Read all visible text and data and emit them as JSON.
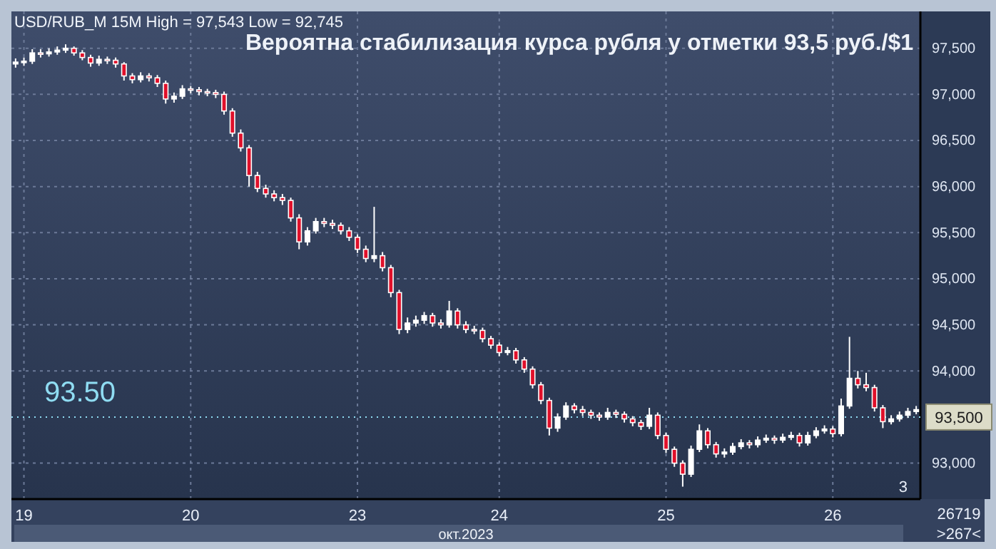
{
  "chart_data": {
    "type": "candlestick",
    "title": "Вероятна стабилизация курса рубля у отметки 93,5 руб./$1",
    "subtitle": "USD/RUB_M 15M High = 97,543 Low = 92,745",
    "xlabel": "окт.2023",
    "categories": [
      null,
      "19",
      null,
      null,
      null,
      null,
      null,
      null,
      null,
      null,
      null,
      null,
      null,
      null,
      null,
      null,
      null,
      null,
      null,
      null,
      null,
      "20",
      null,
      null,
      null,
      null,
      null,
      null,
      null,
      null,
      null,
      null,
      null,
      null,
      null,
      null,
      null,
      null,
      null,
      null,
      null,
      "23",
      null,
      null,
      null,
      null,
      null,
      null,
      null,
      null,
      null,
      null,
      null,
      null,
      null,
      null,
      null,
      null,
      "24",
      null,
      null,
      null,
      null,
      null,
      null,
      null,
      null,
      null,
      null,
      null,
      null,
      null,
      null,
      null,
      null,
      null,
      null,
      null,
      "25",
      null,
      null,
      null,
      null,
      null,
      null,
      null,
      null,
      null,
      null,
      null,
      null,
      null,
      null,
      null,
      null,
      null,
      null,
      null,
      "26",
      null,
      null,
      null,
      null,
      null,
      null,
      null,
      null,
      null,
      null
    ],
    "ohlc": [
      [
        97330,
        97390,
        97290,
        97350
      ],
      [
        97350,
        97400,
        97310,
        97360
      ],
      [
        97360,
        97490,
        97330,
        97450
      ],
      [
        97450,
        97490,
        97400,
        97440
      ],
      [
        97440,
        97500,
        97410,
        97460
      ],
      [
        97460,
        97520,
        97430,
        97480
      ],
      [
        97480,
        97543,
        97450,
        97500
      ],
      [
        97500,
        97520,
        97420,
        97450
      ],
      [
        97450,
        97480,
        97370,
        97400
      ],
      [
        97400,
        97430,
        97300,
        97340
      ],
      [
        97340,
        97420,
        97310,
        97380
      ],
      [
        97380,
        97410,
        97330,
        97370
      ],
      [
        97370,
        97400,
        97290,
        97330
      ],
      [
        97330,
        97350,
        97150,
        97200
      ],
      [
        97200,
        97230,
        97120,
        97160
      ],
      [
        97160,
        97240,
        97130,
        97200
      ],
      [
        97200,
        97230,
        97140,
        97180
      ],
      [
        97180,
        97210,
        97080,
        97120
      ],
      [
        97120,
        97150,
        96900,
        96950
      ],
      [
        96950,
        97020,
        96910,
        96980
      ],
      [
        96980,
        97100,
        96950,
        97060
      ],
      [
        97060,
        97090,
        97010,
        97050
      ],
      [
        97050,
        97080,
        96990,
        97030
      ],
      [
        97030,
        97060,
        96980,
        97020
      ],
      [
        97020,
        97050,
        96960,
        97000
      ],
      [
        97000,
        97030,
        96780,
        96820
      ],
      [
        96820,
        96850,
        96540,
        96580
      ],
      [
        96580,
        96620,
        96380,
        96420
      ],
      [
        96420,
        96450,
        96000,
        96120
      ],
      [
        96120,
        96160,
        95940,
        95980
      ],
      [
        95980,
        96020,
        95880,
        95920
      ],
      [
        95920,
        95960,
        95840,
        95880
      ],
      [
        95880,
        95920,
        95800,
        95850
      ],
      [
        95850,
        95880,
        95620,
        95660
      ],
      [
        95660,
        95700,
        95320,
        95400
      ],
      [
        95400,
        95560,
        95360,
        95520
      ],
      [
        95520,
        95660,
        95490,
        95620
      ],
      [
        95620,
        95660,
        95560,
        95600
      ],
      [
        95600,
        95640,
        95540,
        95580
      ],
      [
        95580,
        95610,
        95480,
        95520
      ],
      [
        95520,
        95560,
        95410,
        95450
      ],
      [
        95450,
        95480,
        95280,
        95320
      ],
      [
        95320,
        95360,
        95180,
        95220
      ],
      [
        95220,
        95780,
        95180,
        95250
      ],
      [
        95250,
        95290,
        95080,
        95120
      ],
      [
        95120,
        95150,
        94800,
        94850
      ],
      [
        94850,
        94880,
        94400,
        94450
      ],
      [
        94450,
        94580,
        94410,
        94520
      ],
      [
        94520,
        94600,
        94480,
        94550
      ],
      [
        94550,
        94640,
        94510,
        94600
      ],
      [
        94600,
        94630,
        94480,
        94520
      ],
      [
        94520,
        94560,
        94460,
        94500
      ],
      [
        94500,
        94760,
        94470,
        94650
      ],
      [
        94650,
        94680,
        94460,
        94500
      ],
      [
        94500,
        94540,
        94410,
        94450
      ],
      [
        94450,
        94490,
        94400,
        94440
      ],
      [
        94440,
        94470,
        94310,
        94350
      ],
      [
        94350,
        94380,
        94240,
        94280
      ],
      [
        94280,
        94310,
        94160,
        94200
      ],
      [
        94200,
        94260,
        94170,
        94220
      ],
      [
        94220,
        94250,
        94080,
        94120
      ],
      [
        94120,
        94150,
        93980,
        94020
      ],
      [
        94020,
        94050,
        93810,
        93850
      ],
      [
        93850,
        93880,
        93640,
        93680
      ],
      [
        93680,
        93710,
        93300,
        93380
      ],
      [
        93380,
        93540,
        93340,
        93500
      ],
      [
        93500,
        93660,
        93470,
        93620
      ],
      [
        93620,
        93650,
        93540,
        93580
      ],
      [
        93580,
        93620,
        93510,
        93550
      ],
      [
        93550,
        93580,
        93480,
        93520
      ],
      [
        93520,
        93550,
        93460,
        93500
      ],
      [
        93500,
        93600,
        93470,
        93550
      ],
      [
        93550,
        93580,
        93490,
        93530
      ],
      [
        93530,
        93560,
        93440,
        93480
      ],
      [
        93480,
        93510,
        93400,
        93440
      ],
      [
        93440,
        93470,
        93360,
        93400
      ],
      [
        93400,
        93600,
        93370,
        93520
      ],
      [
        93520,
        93550,
        93260,
        93300
      ],
      [
        93300,
        93330,
        93110,
        93150
      ],
      [
        93150,
        93180,
        92960,
        93000
      ],
      [
        93000,
        93030,
        92745,
        92880
      ],
      [
        92880,
        93190,
        92850,
        93150
      ],
      [
        93150,
        93420,
        93120,
        93350
      ],
      [
        93350,
        93380,
        93160,
        93200
      ],
      [
        93200,
        93230,
        93060,
        93100
      ],
      [
        93100,
        93160,
        93060,
        93120
      ],
      [
        93120,
        93220,
        93090,
        93180
      ],
      [
        93180,
        93260,
        93150,
        93220
      ],
      [
        93220,
        93250,
        93160,
        93200
      ],
      [
        93200,
        93290,
        93170,
        93250
      ],
      [
        93250,
        93310,
        93220,
        93270
      ],
      [
        93270,
        93300,
        93210,
        93250
      ],
      [
        93250,
        93320,
        93220,
        93280
      ],
      [
        93280,
        93340,
        93250,
        93300
      ],
      [
        93300,
        93330,
        93180,
        93220
      ],
      [
        93220,
        93340,
        93190,
        93300
      ],
      [
        93300,
        93390,
        93270,
        93350
      ],
      [
        93350,
        93410,
        93320,
        93370
      ],
      [
        93370,
        93400,
        93280,
        93320
      ],
      [
        93320,
        93700,
        93290,
        93620
      ],
      [
        93620,
        94370,
        93590,
        93920
      ],
      [
        93920,
        94000,
        93810,
        93850
      ],
      [
        93850,
        93980,
        93780,
        93820
      ],
      [
        93820,
        93850,
        93560,
        93600
      ],
      [
        93600,
        93630,
        93380,
        93450
      ],
      [
        93450,
        93520,
        93420,
        93480
      ],
      [
        93480,
        93560,
        93450,
        93520
      ],
      [
        93520,
        93600,
        93490,
        93560
      ],
      [
        93560,
        93620,
        93530,
        93580
      ]
    ],
    "ylim": [
      92610,
      97900
    ],
    "yticks": [
      {
        "value": 93000,
        "label": "93,000"
      },
      {
        "value": 94000,
        "label": "94,000"
      },
      {
        "value": 94500,
        "label": "94,500"
      },
      {
        "value": 95000,
        "label": "95,000"
      },
      {
        "value": 95500,
        "label": "95,500"
      },
      {
        "value": 96000,
        "label": "96,000"
      },
      {
        "value": 96500,
        "label": "96,500"
      },
      {
        "value": 97000,
        "label": "97,000"
      },
      {
        "value": 97500,
        "label": "97,500"
      }
    ],
    "grid": true,
    "ref_lines": [
      {
        "axis": "y",
        "value": 93500,
        "color": "#8fdcf2",
        "line_style": "dotted"
      }
    ],
    "annotations": [
      "93.50",
      "93,500",
      "3",
      "26719",
      ">267<"
    ]
  }
}
